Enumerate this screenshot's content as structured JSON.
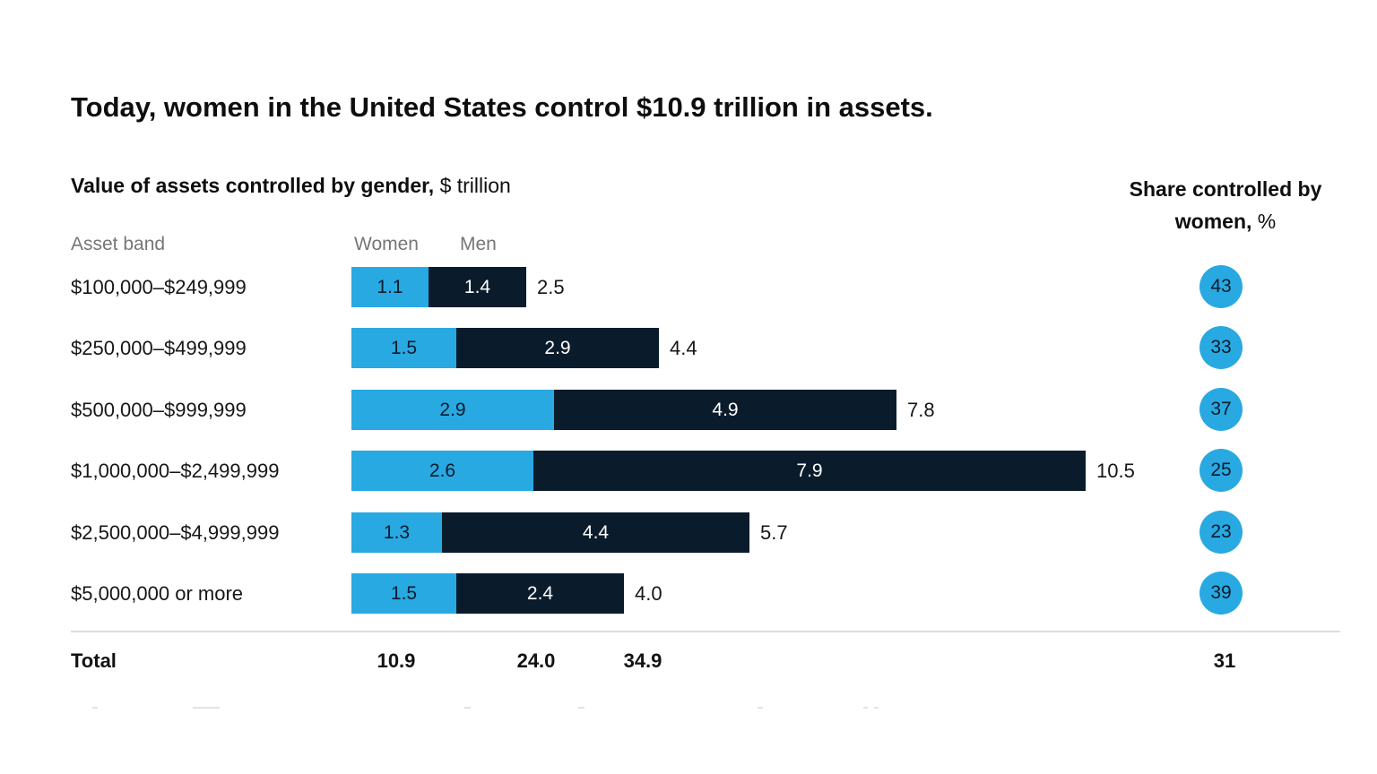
{
  "header": {
    "title": "Today, women in the United States control $10.9 trillion in assets.",
    "subtitle_bold": "Value of assets controlled by gender,",
    "subtitle_unit": "$ trillion",
    "share_header_bold": "Share controlled by women,",
    "share_header_unit": "%"
  },
  "columns": {
    "asset_band": "Asset band",
    "women": "Women",
    "men": "Men"
  },
  "chart_data": {
    "type": "bar",
    "orientation": "horizontal",
    "stacked": true,
    "unit": "$ trillion",
    "xlim": [
      0,
      10.5
    ],
    "grid": false,
    "legend_position": "top-as-column-headers",
    "categories": [
      "$100,000–$249,999",
      "$250,000–$499,999",
      "$500,000–$999,999",
      "$1,000,000–$2,499,999",
      "$2,500,000–$4,999,999",
      "$5,000,000 or more"
    ],
    "series": [
      {
        "name": "Women",
        "color": "#29A9E2",
        "values": [
          1.1,
          1.5,
          2.9,
          2.6,
          1.3,
          1.5
        ]
      },
      {
        "name": "Men",
        "color": "#0A1C2C",
        "values": [
          1.4,
          2.9,
          4.9,
          7.9,
          4.4,
          2.4
        ]
      }
    ],
    "row_totals": [
      2.5,
      4.4,
      7.8,
      10.5,
      5.7,
      4.0
    ],
    "share_controlled_by_women_pct": [
      43,
      33,
      37,
      25,
      23,
      39
    ],
    "totals": {
      "label": "Total",
      "women": 10.9,
      "men": 24.0,
      "overall": 34.9,
      "share_pct": 31
    }
  },
  "colors": {
    "women_bar": "#29A9E2",
    "men_bar": "#0A1C2C",
    "share_circle": "#29A9E2",
    "muted_header_text": "#767676",
    "divider": "#dcdcdc",
    "text": "#0e0e0e",
    "background": "#ffffff"
  }
}
